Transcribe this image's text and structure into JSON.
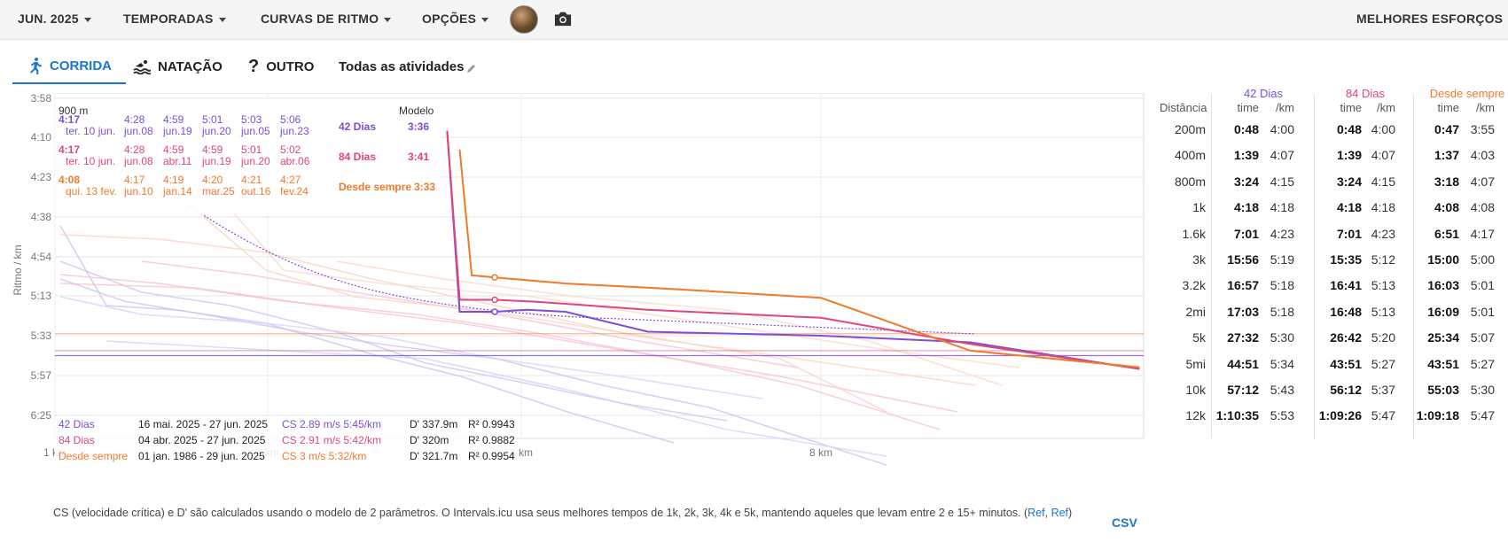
{
  "topbar": {
    "menus": [
      "JUN. 2025",
      "TEMPORADAS",
      "CURVAS DE RITMO",
      "OPÇÕES"
    ],
    "right_menu": "MELHORES ESFORÇOS",
    "avatar_icon": "user-avatar",
    "camera_icon": "camera-icon"
  },
  "tabs": [
    {
      "label": "CORRIDA",
      "icon": "running-icon",
      "active": true
    },
    {
      "label": "NATAÇÃO",
      "icon": "swimming-icon",
      "active": false
    },
    {
      "label": "OUTRO",
      "icon": "question-icon",
      "active": false
    },
    {
      "label": "Todas as atividades",
      "icon": "pencil-icon",
      "active": false
    }
  ],
  "colors": {
    "s42": "#7b4fd6",
    "s84": "#e0457b",
    "all": "#f07a2c",
    "link": "#1976d2"
  },
  "tooltip": {
    "distance": "900 m",
    "model_header": "Modelo",
    "rows": [
      {
        "first": "4:17",
        "first_date": "ter. 10 jun.",
        "vals": [
          [
            "4:28",
            "jun.08"
          ],
          [
            "4:59",
            "jun.19"
          ],
          [
            "5:01",
            "jun.20"
          ],
          [
            "5:03",
            "jun.05"
          ],
          [
            "5:06",
            "jun.23"
          ]
        ],
        "label": "42 Dias",
        "model": "3:36"
      },
      {
        "first": "4:17",
        "first_date": "ter. 10 jun.",
        "vals": [
          [
            "4:28",
            "jun.08"
          ],
          [
            "4:59",
            "abr.11"
          ],
          [
            "4:59",
            "jun.19"
          ],
          [
            "5:01",
            "jun.20"
          ],
          [
            "5:02",
            "abr.06"
          ]
        ],
        "label": "84 Dias",
        "model": "3:41"
      },
      {
        "first": "4:08",
        "first_date": "qui. 13 fev.",
        "vals": [
          [
            "4:17",
            "jun.10"
          ],
          [
            "4:19",
            "jan.14"
          ],
          [
            "4:20",
            "mar.25"
          ],
          [
            "4:21",
            "out.16"
          ],
          [
            "4:27",
            "fev.24"
          ]
        ],
        "label": "Desde sempre",
        "model": "3:33"
      }
    ]
  },
  "legend": [
    {
      "name": "42 Dias",
      "range": "16 mai. 2025 - 27 jun. 2025",
      "cs": "CS 2.89 m/s 5:45/km",
      "dprime": "D' 337.9m",
      "r2": "R² 0.9943"
    },
    {
      "name": "84 Dias",
      "range": "04 abr. 2025 - 27 jun. 2025",
      "cs": "CS 2.91 m/s 5:42/km",
      "dprime": "D' 320m",
      "r2": "R² 0.9882"
    },
    {
      "name": "Desde sempre",
      "range": "01 jan. 1986 - 29 jun. 2025",
      "cs": "CS 3 m/s 5:32/km",
      "dprime": "D' 321.7m",
      "r2": "R² 0.9954"
    }
  ],
  "chart_data": {
    "type": "line",
    "ylabel": "Ritmo / km",
    "y_ticks": [
      "3:58",
      "4:10",
      "4:23",
      "4:38",
      "4:54",
      "5:13",
      "5:33",
      "5:57",
      "6:25"
    ],
    "x_ticks": [
      "1 km",
      "2 km",
      "4 km",
      "8 km"
    ],
    "x_scale": "log",
    "y_reversed": true,
    "series": [
      {
        "name": "42 Dias",
        "x": [
          2.9,
          3.0,
          3.3,
          3.6,
          4.0,
          5.0,
          8.0,
          12.0,
          19.0
        ],
        "y": [
          "4:08",
          "5:21",
          "5:21",
          "5:20",
          "5:21",
          "5:31",
          "5:33",
          "5:37",
          "5:53"
        ]
      },
      {
        "name": "84 Dias",
        "x": [
          2.9,
          3.0,
          3.3,
          3.7,
          4.0,
          5.0,
          8.0,
          12.0,
          19.0
        ],
        "y": [
          "4:08",
          "5:15",
          "5:15",
          "5:16",
          "5:17",
          "5:20",
          "5:24",
          "5:38",
          "5:53"
        ]
      },
      {
        "name": "Desde sempre",
        "x": [
          3.0,
          3.1,
          3.3,
          4.0,
          5.0,
          8.0,
          12.0,
          19.0
        ],
        "y": [
          "4:14",
          "5:03",
          "5:04",
          "5:07",
          "5:09",
          "5:14",
          "5:42",
          "5:52"
        ]
      }
    ]
  },
  "footnote": {
    "text": "CS (velocidade crítica) e D' são calculados usando o modelo de 2 parâmetros. O Intervals.icu usa seus melhores tempos de 1k, 2k, 3k, 4k e 5k, mantendo aqueles que levam entre 2 e 15+ minutos. (",
    "ref1": "Ref",
    "sep": ", ",
    "ref2": "Ref",
    "close": ")"
  },
  "csv_label": "CSV",
  "best_efforts": {
    "col_distance": "Distância",
    "groups": [
      {
        "name": "42 Dias",
        "time_hdr": "time",
        "pace_hdr": "/km"
      },
      {
        "name": "84 Dias",
        "time_hdr": "time",
        "pace_hdr": "/km"
      },
      {
        "name": "Desde sempre",
        "time_hdr": "time",
        "pace_hdr": "/km"
      }
    ],
    "rows": [
      {
        "d": "200m",
        "v": [
          [
            "0:48",
            "4:00"
          ],
          [
            "0:48",
            "4:00"
          ],
          [
            "0:47",
            "3:55"
          ]
        ]
      },
      {
        "d": "400m",
        "v": [
          [
            "1:39",
            "4:07"
          ],
          [
            "1:39",
            "4:07"
          ],
          [
            "1:37",
            "4:03"
          ]
        ]
      },
      {
        "d": "800m",
        "v": [
          [
            "3:24",
            "4:15"
          ],
          [
            "3:24",
            "4:15"
          ],
          [
            "3:18",
            "4:07"
          ]
        ]
      },
      {
        "d": "1k",
        "v": [
          [
            "4:18",
            "4:18"
          ],
          [
            "4:18",
            "4:18"
          ],
          [
            "4:08",
            "4:08"
          ]
        ]
      },
      {
        "d": "1.6k",
        "v": [
          [
            "7:01",
            "4:23"
          ],
          [
            "7:01",
            "4:23"
          ],
          [
            "6:51",
            "4:17"
          ]
        ]
      },
      {
        "d": "3k",
        "v": [
          [
            "15:56",
            "5:19"
          ],
          [
            "15:35",
            "5:12"
          ],
          [
            "15:00",
            "5:00"
          ]
        ]
      },
      {
        "d": "3.2k",
        "v": [
          [
            "16:57",
            "5:18"
          ],
          [
            "16:41",
            "5:13"
          ],
          [
            "16:03",
            "5:01"
          ]
        ]
      },
      {
        "d": "2mi",
        "v": [
          [
            "17:03",
            "5:18"
          ],
          [
            "16:48",
            "5:13"
          ],
          [
            "16:09",
            "5:01"
          ]
        ]
      },
      {
        "d": "5k",
        "v": [
          [
            "27:32",
            "5:30"
          ],
          [
            "26:42",
            "5:20"
          ],
          [
            "25:34",
            "5:07"
          ]
        ]
      },
      {
        "d": "5mi",
        "v": [
          [
            "44:51",
            "5:34"
          ],
          [
            "43:51",
            "5:27"
          ],
          [
            "43:51",
            "5:27"
          ]
        ]
      },
      {
        "d": "10k",
        "v": [
          [
            "57:12",
            "5:43"
          ],
          [
            "56:12",
            "5:37"
          ],
          [
            "55:03",
            "5:30"
          ]
        ]
      },
      {
        "d": "12k",
        "v": [
          [
            "1:10:35",
            "5:53"
          ],
          [
            "1:09:26",
            "5:47"
          ],
          [
            "1:09:18",
            "5:47"
          ]
        ]
      }
    ]
  }
}
